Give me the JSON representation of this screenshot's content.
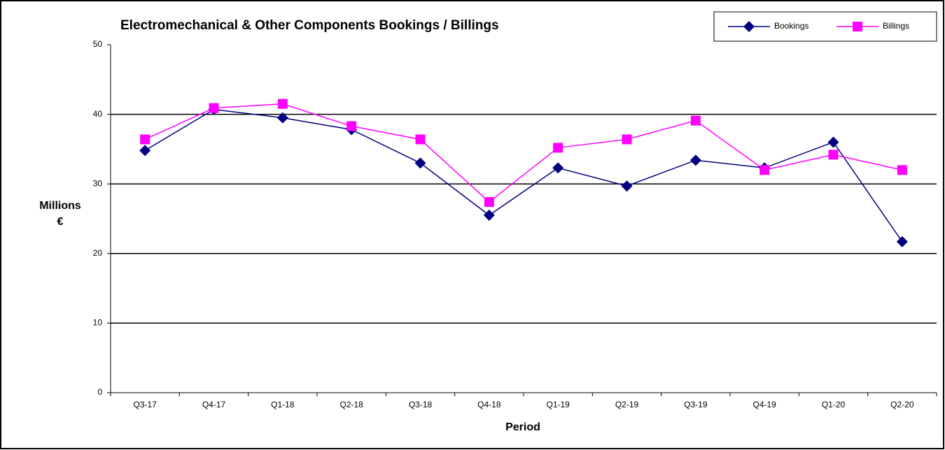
{
  "chart_data": {
    "type": "line",
    "title": "Electromechanical & Other Components Bookings / Billings",
    "y_label": [
      "Millions",
      "€"
    ],
    "x_label": "Period",
    "categories": [
      "Q3-17",
      "Q4-17",
      "Q1-18",
      "Q2-18",
      "Q3-18",
      "Q4-18",
      "Q1-19",
      "Q2-19",
      "Q3-19",
      "Q4-19",
      "Q1-20",
      "Q2-20"
    ],
    "series": [
      {
        "name": "Bookings",
        "color": "#000080",
        "marker": "diamond",
        "values": [
          34.8,
          40.7,
          39.5,
          37.8,
          33.0,
          25.5,
          32.3,
          29.7,
          33.4,
          32.3,
          36.0,
          21.7
        ]
      },
      {
        "name": "Billings",
        "color": "#ff00ff",
        "marker": "square",
        "values": [
          36.4,
          40.9,
          41.5,
          38.3,
          36.4,
          27.4,
          35.2,
          36.4,
          39.1,
          32.0,
          34.2,
          32.0
        ]
      }
    ],
    "ylim": [
      0,
      50
    ],
    "yticks": [
      0,
      10,
      20,
      30,
      40,
      50
    ],
    "grid": true,
    "legend": "top-right"
  }
}
